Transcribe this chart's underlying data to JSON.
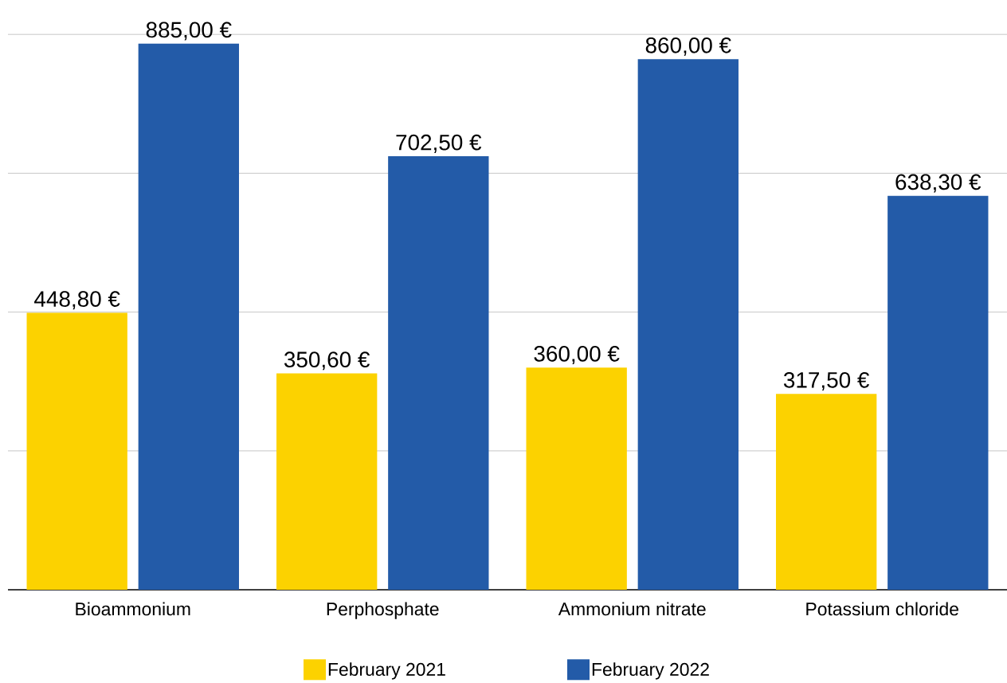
{
  "chart_data": {
    "type": "bar",
    "categories": [
      "Bioammonium",
      "Perphosphate",
      "Ammonium nitrate",
      "Potassium chloride"
    ],
    "series": [
      {
        "name": "February 2021",
        "color": "#fcd200",
        "values": [
          448.8,
          350.6,
          360.0,
          317.5
        ],
        "value_labels": [
          "448,80 €",
          "350,60 €",
          "360,00 €",
          "317,50 €"
        ]
      },
      {
        "name": "February 2022",
        "color": "#235ba8",
        "values": [
          885.0,
          702.5,
          860.0,
          638.3
        ],
        "value_labels": [
          "885,00 €",
          "702,50 €",
          "860,00 €",
          "638,30 €"
        ]
      }
    ],
    "yticks": [
      {
        "value": 225,
        "label": null
      },
      {
        "value": 450,
        "label": null
      },
      {
        "value": 675,
        "label": null
      },
      {
        "value": 900,
        "label": null
      }
    ],
    "grid": "y",
    "legend": "bottom",
    "tick_labels": "x"
  }
}
